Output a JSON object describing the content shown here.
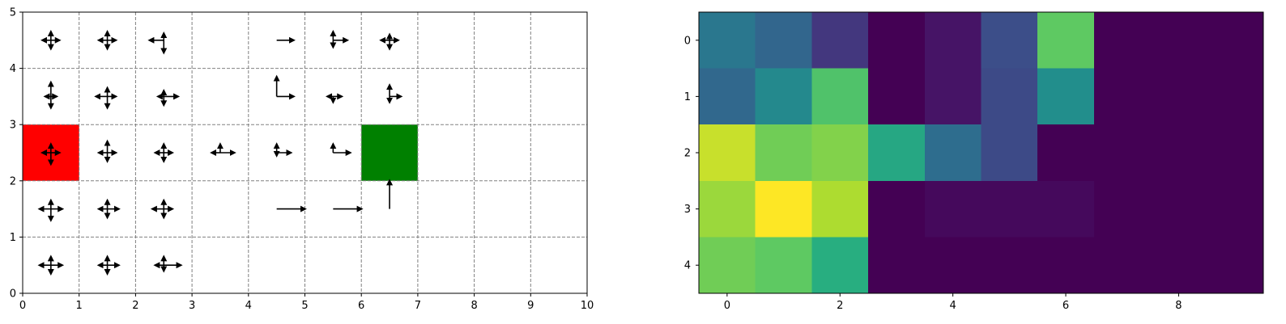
{
  "chart_data": [
    {
      "type": "quiver-grid",
      "xlim": [
        0,
        10
      ],
      "ylim": [
        0,
        5
      ],
      "xticks": [
        "0",
        "1",
        "2",
        "3",
        "4",
        "5",
        "6",
        "7",
        "8",
        "9",
        "10"
      ],
      "yticks": [
        "0",
        "1",
        "2",
        "3",
        "4",
        "5"
      ],
      "grid": true,
      "colored_cells": [
        {
          "x": 0,
          "y": 2,
          "color": "#ff0000"
        },
        {
          "x": 6,
          "y": 2,
          "color": "#008000"
        }
      ],
      "arrows": [
        {
          "x": 0,
          "y": 4,
          "u": 0.15,
          "d": 0.15,
          "l": 0.15,
          "r": 0.15
        },
        {
          "x": 1,
          "y": 4,
          "u": 0.15,
          "d": 0.15,
          "l": 0.15,
          "r": 0.15
        },
        {
          "x": 2,
          "y": 4,
          "u": 0.12,
          "d": 0.22,
          "l": 0.25,
          "r": 0
        },
        {
          "x": 4,
          "y": 4,
          "u": 0,
          "d": 0,
          "l": 0,
          "r": 0.3
        },
        {
          "x": 5,
          "y": 4,
          "u": 0.15,
          "d": 0.12,
          "l": 0,
          "r": 0.25
        },
        {
          "x": 6,
          "y": 4,
          "u": 0.1,
          "d": 0.15,
          "l": 0.15,
          "r": 0.15
        },
        {
          "x": 0,
          "y": 3,
          "u": 0.25,
          "d": 0.2,
          "l": 0.1,
          "r": 0.1
        },
        {
          "x": 1,
          "y": 3,
          "u": 0.15,
          "d": 0.2,
          "l": 0.2,
          "r": 0.15
        },
        {
          "x": 2,
          "y": 3,
          "u": 0.1,
          "d": 0.15,
          "l": 0.1,
          "r": 0.25
        },
        {
          "x": 4,
          "y": 3,
          "u": 0.35,
          "d": 0,
          "l": 0,
          "r": 0.3
        },
        {
          "x": 5,
          "y": 3,
          "u": 0,
          "d": 0.1,
          "l": 0.1,
          "r": 0.15
        },
        {
          "x": 6,
          "y": 3,
          "u": 0.2,
          "d": 0.1,
          "l": 0,
          "r": 0.2
        },
        {
          "x": 0,
          "y": 2,
          "u": 0.15,
          "d": 0.2,
          "l": 0.15,
          "r": 0.15
        },
        {
          "x": 1,
          "y": 2,
          "u": 0.2,
          "d": 0.15,
          "l": 0.15,
          "r": 0.15
        },
        {
          "x": 2,
          "y": 2,
          "u": 0.15,
          "d": 0.15,
          "l": 0.15,
          "r": 0.15
        },
        {
          "x": 3,
          "y": 2,
          "u": 0.15,
          "d": 0,
          "l": 0.15,
          "r": 0.25
        },
        {
          "x": 4,
          "y": 2,
          "u": 0.15,
          "d": 0.05,
          "l": 0,
          "r": 0.25
        },
        {
          "x": 5,
          "y": 2,
          "u": 0.15,
          "d": 0,
          "l": 0,
          "r": 0.3
        },
        {
          "x": 0,
          "y": 1,
          "u": 0.15,
          "d": 0.2,
          "l": 0.2,
          "r": 0.2
        },
        {
          "x": 1,
          "y": 1,
          "u": 0.15,
          "d": 0.15,
          "l": 0.15,
          "r": 0.2
        },
        {
          "x": 2,
          "y": 1,
          "u": 0.15,
          "d": 0.15,
          "l": 0.2,
          "r": 0.15
        },
        {
          "x": 4,
          "y": 1,
          "u": 0,
          "d": 0,
          "l": 0,
          "r": 0.5
        },
        {
          "x": 5,
          "y": 1,
          "u": 0,
          "d": 0,
          "l": 0,
          "r": 0.5
        },
        {
          "x": 6,
          "y": 1,
          "u": 0.5,
          "d": 0,
          "l": 0,
          "r": 0
        },
        {
          "x": 0,
          "y": 0,
          "u": 0.15,
          "d": 0.15,
          "l": 0.2,
          "r": 0.2
        },
        {
          "x": 1,
          "y": 0,
          "u": 0.15,
          "d": 0.15,
          "l": 0.15,
          "r": 0.2
        },
        {
          "x": 2,
          "y": 0,
          "u": 0.15,
          "d": 0.1,
          "l": 0.15,
          "r": 0.3
        }
      ]
    },
    {
      "type": "heatmap",
      "colormap": "viridis",
      "xticks": [
        "0",
        "2",
        "4",
        "6",
        "8"
      ],
      "yticks": [
        "0",
        "1",
        "2",
        "3",
        "4"
      ],
      "values": [
        [
          0.4,
          0.33,
          0.18,
          0.0,
          0.07,
          0.24,
          0.75,
          0.0,
          0.0,
          0.0
        ],
        [
          0.34,
          0.47,
          0.72,
          0.0,
          0.07,
          0.23,
          0.49,
          0.0,
          0.0,
          0.0
        ],
        [
          0.92,
          0.78,
          0.81,
          0.6,
          0.36,
          0.23,
          0.0,
          0.0,
          0.0,
          0.0
        ],
        [
          0.85,
          1.0,
          0.88,
          0.0,
          0.03,
          0.03,
          0.03,
          0.0,
          0.0,
          0.0
        ],
        [
          0.78,
          0.75,
          0.63,
          0.0,
          0.0,
          0.0,
          0.0,
          0.0,
          0.0,
          0.0
        ]
      ]
    }
  ]
}
